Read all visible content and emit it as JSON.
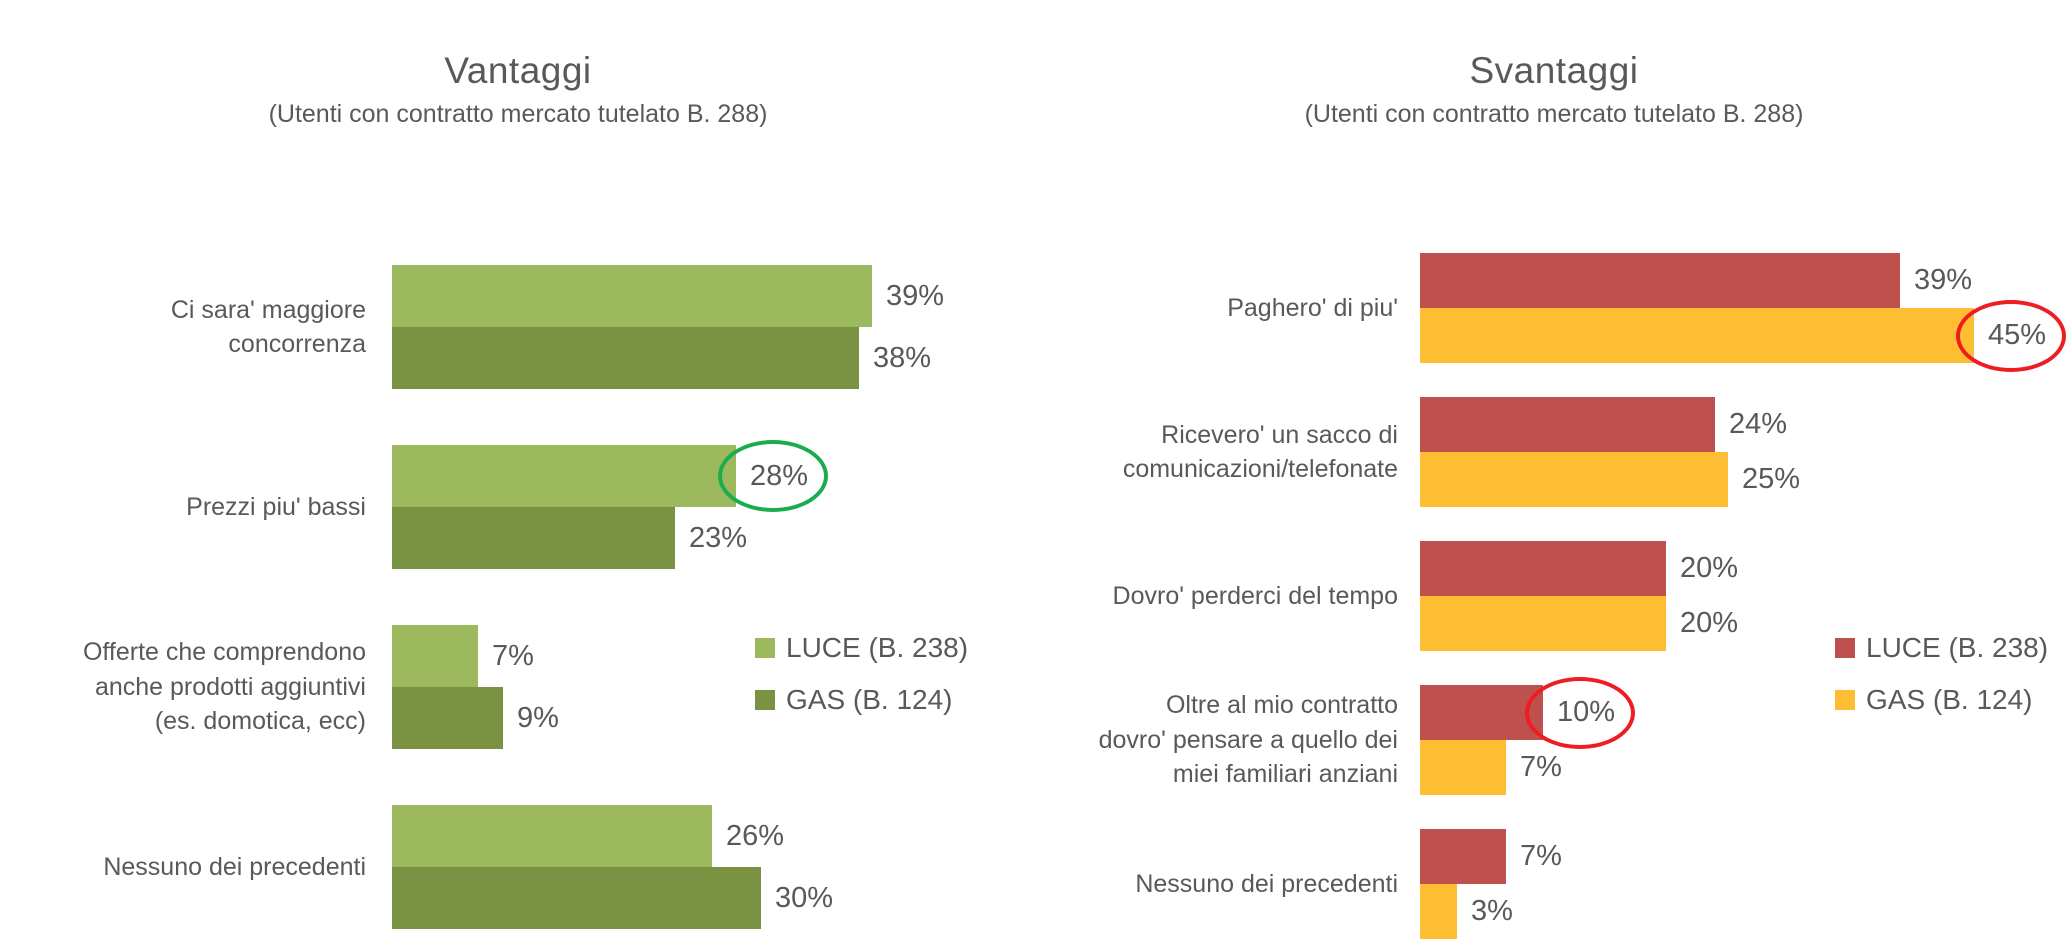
{
  "page": {
    "background": "#FFFFFF",
    "text_color": "#595959"
  },
  "chart_data": [
    {
      "type": "bar",
      "orientation": "horizontal",
      "title": "Vantaggi",
      "subtitle": "(Utenti con contratto mercato tutelato B. 288)",
      "categories": [
        "Ci sara' maggiore\nconcorrenza",
        "Prezzi piu' bassi",
        "Offerte che comprendono\nanche prodotti aggiuntivi\n(es. domotica, ecc)",
        "Nessuno dei precedenti"
      ],
      "series": [
        {
          "name": "LUCE (B. 238)",
          "color": "#9CBA5D",
          "values": [
            39,
            28,
            7,
            26
          ]
        },
        {
          "name": "GAS (B. 124)",
          "color": "#7A9343",
          "values": [
            38,
            23,
            9,
            30
          ]
        }
      ],
      "value_labels": [
        [
          "39%",
          "38%"
        ],
        [
          "28%",
          "23%"
        ],
        [
          "7%",
          "9%"
        ],
        [
          "26%",
          "30%"
        ]
      ],
      "unit": "%",
      "xlim": [
        0,
        50
      ],
      "grid": false,
      "legend_position": "right-center",
      "annotations": [
        {
          "type": "ellipse",
          "color": "#1CAC50",
          "around_value": "28%",
          "category": "Prezzi piu' bassi",
          "series": "LUCE (B. 238)"
        }
      ]
    },
    {
      "type": "bar",
      "orientation": "horizontal",
      "title": "Svantaggi",
      "subtitle": "(Utenti con contratto mercato tutelato B. 288)",
      "categories": [
        "Paghero' di piu'",
        "Ricevero' un sacco di\ncomunicazioni/telefonate",
        "Dovro' perderci del tempo",
        "Oltre al mio contratto\ndovro' pensare a quello dei\nmiei familiari anziani",
        "Nessuno dei precedenti"
      ],
      "series": [
        {
          "name": "LUCE (B. 238)",
          "color": "#BE504E",
          "values": [
            39,
            24,
            20,
            10,
            7
          ]
        },
        {
          "name": "GAS (B. 124)",
          "color": "#FDBE33",
          "values": [
            45,
            25,
            20,
            7,
            3
          ]
        }
      ],
      "value_labels": [
        [
          "39%",
          "45%"
        ],
        [
          "24%",
          "25%"
        ],
        [
          "20%",
          "20%"
        ],
        [
          "10%",
          "7%"
        ],
        [
          "7%",
          "3%"
        ]
      ],
      "unit": "%",
      "xlim": [
        0,
        50
      ],
      "grid": false,
      "legend_position": "right-center",
      "annotations": [
        {
          "type": "ellipse",
          "color": "#EE1D23",
          "around_value": "45%",
          "category": "Paghero' di piu'",
          "series": "GAS (B. 124)"
        },
        {
          "type": "ellipse",
          "color": "#EE1D23",
          "around_value": "10%",
          "category": "Oltre al mio contratto dovro' pensare a quello dei miei familiari anziani",
          "series": "LUCE (B. 238)"
        }
      ]
    }
  ]
}
